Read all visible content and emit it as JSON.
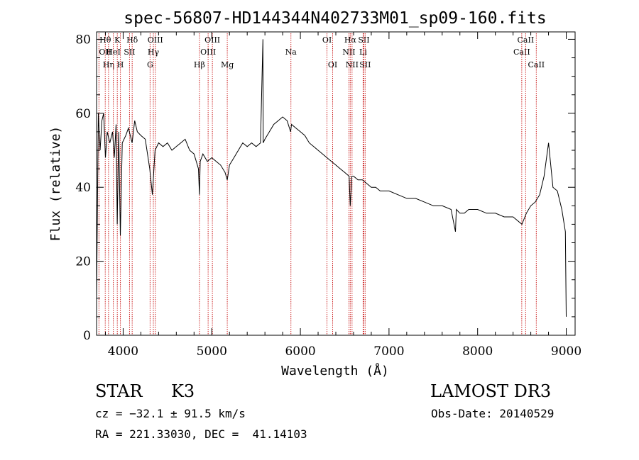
{
  "chart_data": {
    "type": "line",
    "title": "spec-56807-HD144344N402733M01_sp09-160.fits",
    "xlabel": "Wavelength (Å)",
    "ylabel": "Flux (relative)",
    "xlim": [
      3700,
      9100
    ],
    "ylim": [
      0,
      82
    ],
    "xticks": [
      4000,
      5000,
      6000,
      7000,
      8000,
      9000
    ],
    "yticks": [
      0,
      20,
      40,
      60,
      80
    ],
    "grid": false,
    "line_color": "#000000",
    "marker_color": "#cc2222",
    "series": [
      {
        "x": [
          3700,
          3720,
          3740,
          3760,
          3780,
          3800,
          3820,
          3850,
          3880,
          3900,
          3920,
          3933,
          3950,
          3968,
          3990,
          4030,
          4060,
          4101,
          4130,
          4160,
          4200,
          4250,
          4300,
          4330,
          4360,
          4400,
          4450,
          4500,
          4550,
          4600,
          4650,
          4700,
          4750,
          4800,
          4850,
          4861,
          4870,
          4900,
          4950,
          5000,
          5050,
          5100,
          5150,
          5175,
          5200,
          5250,
          5300,
          5350,
          5400,
          5450,
          5500,
          5550,
          5577,
          5580,
          5600,
          5650,
          5700,
          5750,
          5800,
          5850,
          5890,
          5900,
          5950,
          6000,
          6050,
          6100,
          6150,
          6200,
          6250,
          6300,
          6350,
          6400,
          6450,
          6500,
          6550,
          6563,
          6580,
          6600,
          6650,
          6700,
          6750,
          6800,
          6850,
          6900,
          6950,
          7000,
          7100,
          7200,
          7300,
          7400,
          7500,
          7600,
          7700,
          7750,
          7760,
          7800,
          7850,
          7900,
          8000,
          8100,
          8200,
          8300,
          8400,
          8500,
          8550,
          8600,
          8650,
          8700,
          8750,
          8800,
          8850,
          8900,
          8950,
          8990,
          9000
        ],
        "y": [
          10,
          60,
          50,
          58,
          60,
          48,
          55,
          52,
          55,
          48,
          57,
          30,
          55,
          27,
          52,
          54,
          56,
          52,
          58,
          55,
          54,
          53,
          45,
          38,
          50,
          52,
          51,
          52,
          50,
          51,
          52,
          53,
          50,
          49,
          45,
          38,
          47,
          49,
          47,
          48,
          47,
          46,
          44,
          42,
          46,
          48,
          50,
          52,
          51,
          52,
          51,
          52,
          80,
          52,
          53,
          55,
          57,
          58,
          59,
          58,
          55,
          57,
          56,
          55,
          54,
          52,
          51,
          50,
          49,
          48,
          47,
          46,
          45,
          44,
          43,
          35,
          43,
          43,
          42,
          42,
          41,
          40,
          40,
          39,
          39,
          39,
          38,
          37,
          37,
          36,
          35,
          35,
          34,
          28,
          34,
          33,
          33,
          34,
          34,
          33,
          33,
          32,
          32,
          30,
          33,
          35,
          36,
          38,
          43,
          52,
          40,
          39,
          34,
          28,
          5
        ]
      }
    ],
    "lines": [
      {
        "name": "O II",
        "label": "OII",
        "x": 3727,
        "row": 2,
        "align": "start"
      },
      {
        "name": "H theta",
        "label": "Hθ",
        "x": 3798,
        "row": 1,
        "align": "middle"
      },
      {
        "name": "H eta",
        "label": "Hη",
        "x": 3835,
        "row": 3,
        "align": "middle"
      },
      {
        "name": "He I",
        "label": "HeI",
        "x": 3889,
        "row": 2,
        "align": "middle"
      },
      {
        "name": "K",
        "label": "K",
        "x": 3934,
        "row": 1,
        "align": "middle"
      },
      {
        "name": "H",
        "label": "H",
        "x": 3969,
        "row": 3,
        "align": "middle"
      },
      {
        "name": "H delta",
        "label": "Hδ",
        "x": 4102,
        "row": 1,
        "align": "middle"
      },
      {
        "name": "S II",
        "label": "SII",
        "x": 4072,
        "row": 2,
        "align": "middle"
      },
      {
        "name": "G",
        "label": "G",
        "x": 4304,
        "row": 3,
        "align": "middle"
      },
      {
        "name": "H gamma",
        "label": "Hγ",
        "x": 4341,
        "row": 2,
        "align": "middle"
      },
      {
        "name": "O III 4363",
        "label": "OIII",
        "x": 4363,
        "row": 1,
        "align": "middle"
      },
      {
        "name": "H beta",
        "label": "Hβ",
        "x": 4861,
        "row": 3,
        "align": "middle"
      },
      {
        "name": "O III 4959",
        "label": "OIII",
        "x": 4959,
        "row": 2,
        "align": "middle"
      },
      {
        "name": "O III 5007",
        "label": "OIII",
        "x": 5007,
        "row": 1,
        "align": "middle"
      },
      {
        "name": "Mg",
        "label": "Mg",
        "x": 5175,
        "row": 3,
        "align": "middle"
      },
      {
        "name": "Na",
        "label": "Na",
        "x": 5893,
        "row": 2,
        "align": "middle"
      },
      {
        "name": "O I 6300",
        "label": "OI",
        "x": 6300,
        "row": 1,
        "align": "middle"
      },
      {
        "name": "O I 6364",
        "label": "OI",
        "x": 6364,
        "row": 3,
        "align": "middle"
      },
      {
        "name": "N II 6548",
        "label": "NII",
        "x": 6548,
        "row": 2,
        "align": "middle"
      },
      {
        "name": "H alpha",
        "label": "Hα",
        "x": 6563,
        "row": 1,
        "align": "middle"
      },
      {
        "name": "N II 6583",
        "label": "NII",
        "x": 6583,
        "row": 3,
        "align": "middle"
      },
      {
        "name": "Li",
        "label": "Li",
        "x": 6708,
        "row": 2,
        "align": "middle"
      },
      {
        "name": "S II 6716",
        "label": "SII",
        "x": 6716,
        "row": 1,
        "align": "middle"
      },
      {
        "name": "S II 6731",
        "label": "SII",
        "x": 6731,
        "row": 3,
        "align": "middle"
      },
      {
        "name": "Ca II 8498",
        "label": "CaII",
        "x": 8498,
        "row": 2,
        "align": "middle"
      },
      {
        "name": "Ca II 8542",
        "label": "CaII",
        "x": 8542,
        "row": 1,
        "align": "middle"
      },
      {
        "name": "Ca II 8662",
        "label": "CaII",
        "x": 8662,
        "row": 3,
        "align": "middle"
      }
    ]
  },
  "info": {
    "object_class": "STAR",
    "subclass": "K3",
    "survey": "LAMOST DR3",
    "cz": "cz = −32.1 ± 91.5 km/s",
    "obs_date": "Obs-Date: 20140529",
    "coords": "RA = 221.33030, DEC =  41.14103"
  }
}
